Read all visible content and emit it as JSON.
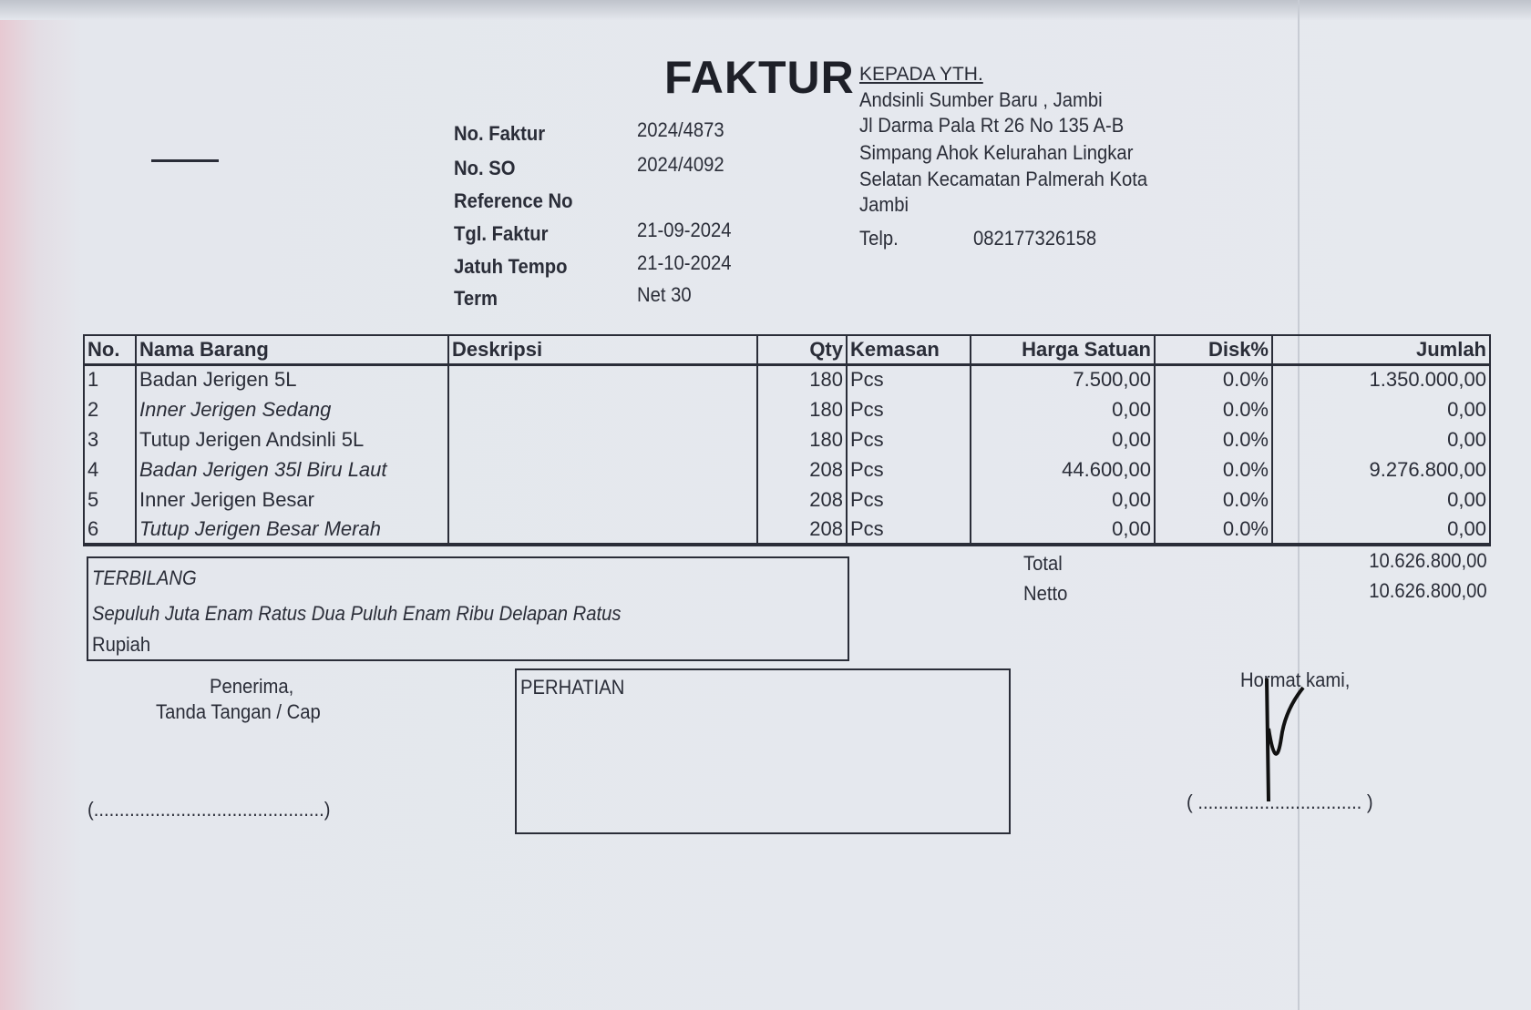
{
  "title": "FAKTUR",
  "meta": [
    {
      "label": "No. Faktur",
      "value": "2024/4873"
    },
    {
      "label": "No. SO",
      "value": "2024/4092"
    },
    {
      "label": "Reference No",
      "value": ""
    },
    {
      "label": "Tgl. Faktur",
      "value": "21-09-2024"
    },
    {
      "label": "Jatuh Tempo",
      "value": "21-10-2024"
    },
    {
      "label": "Term",
      "value": "Net 30"
    }
  ],
  "recipient": {
    "heading": "KEPADA YTH.",
    "lines": [
      "Andsinli Sumber Baru , Jambi",
      "Jl Darma Pala Rt 26 No 135 A-B",
      "Simpang Ahok Kelurahan Lingkar",
      "Selatan Kecamatan Palmerah Kota",
      "Jambi"
    ],
    "phone_label": "Telp.",
    "phone": "082177326158"
  },
  "table": {
    "headers": [
      "No.",
      "Nama Barang",
      "Deskripsi",
      "Qty",
      "Kemasan",
      "Harga Satuan",
      "Disk%",
      "Jumlah"
    ],
    "rows": [
      [
        "1",
        "Badan Jerigen 5L",
        "",
        "180",
        "Pcs",
        "7.500,00",
        "0.0%",
        "1.350.000,00"
      ],
      [
        "2",
        "Inner Jerigen Sedang",
        "",
        "180",
        "Pcs",
        "0,00",
        "0.0%",
        "0,00"
      ],
      [
        "3",
        "Tutup Jerigen Andsinli 5L",
        "",
        "180",
        "Pcs",
        "0,00",
        "0.0%",
        "0,00"
      ],
      [
        "4",
        "Badan Jerigen 35l Biru Laut",
        "",
        "208",
        "Pcs",
        "44.600,00",
        "0.0%",
        "9.276.800,00"
      ],
      [
        "5",
        "Inner Jerigen Besar",
        "",
        "208",
        "Pcs",
        "0,00",
        "0.0%",
        "0,00"
      ],
      [
        "6",
        "Tutup Jerigen Besar Merah",
        "",
        "208",
        "Pcs",
        "0,00",
        "0.0%",
        "0,00"
      ]
    ]
  },
  "terbilang": {
    "label": "TERBILANG",
    "line1": "Sepuluh Juta Enam Ratus Dua Puluh Enam Ribu Delapan Ratus",
    "line2": "Rupiah"
  },
  "totals": {
    "total_label": "Total",
    "total": "10.626.800,00",
    "netto_label": "Netto",
    "netto": "10.626.800,00"
  },
  "footer": {
    "receiver_line1": "Penerima,",
    "receiver_line2": "Tanda Tangan / Cap",
    "receiver_dots": "(.............................................)",
    "perhatian": "PERHATIAN",
    "hormat": "Hormat kami,",
    "hormat_dots": "( ................................ )"
  }
}
